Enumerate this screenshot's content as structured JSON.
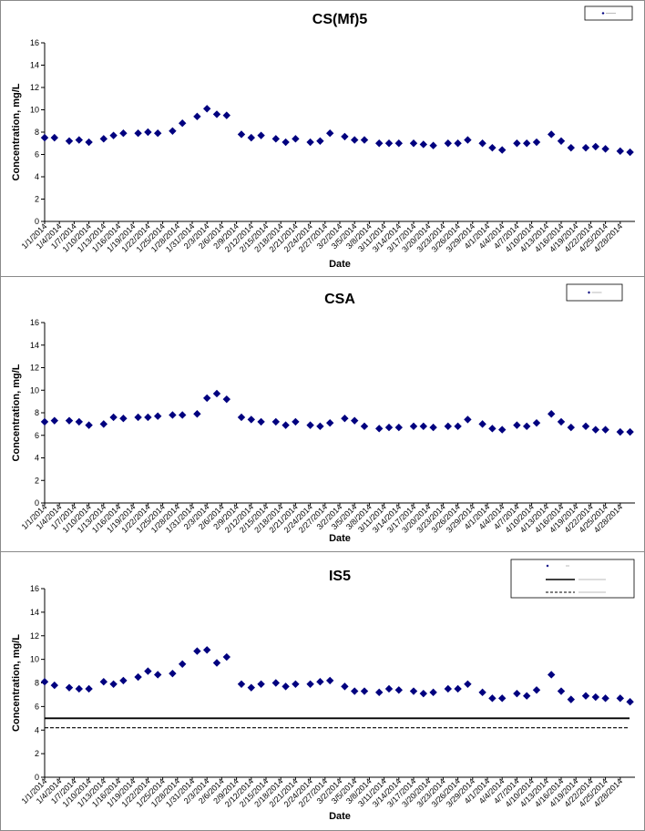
{
  "chart_data": [
    {
      "type": "scatter",
      "title": "CS(Mf)5",
      "xlabel": "Date",
      "ylabel": "Concentration, mg/L",
      "ylim": [
        0,
        16
      ],
      "yticks": [
        "0",
        "2",
        "4",
        "6",
        "8",
        "10",
        "12",
        "14",
        "16"
      ],
      "grid": false,
      "legend_position": "top-right",
      "x_tick_labels": [
        "1/1/2014",
        "1/4/2014",
        "1/7/2014",
        "1/10/2014",
        "1/13/2014",
        "1/16/2014",
        "1/19/2014",
        "1/22/2014",
        "1/25/2014",
        "1/28/2014",
        "1/31/2014",
        "2/3/2014",
        "2/6/2014",
        "2/9/2014",
        "2/12/2014",
        "2/15/2014",
        "2/18/2014",
        "2/21/2014",
        "2/24/2014",
        "2/27/2014",
        "3/2/2014",
        "3/5/2014",
        "3/8/2014",
        "3/11/2014",
        "3/14/2014",
        "3/17/2014",
        "3/20/2014",
        "3/23/2014",
        "3/26/2014",
        "3/29/2014",
        "4/1/2014",
        "4/4/2014",
        "4/7/2014",
        "4/10/2014",
        "4/13/2014",
        "4/16/2014",
        "4/19/2014",
        "4/22/2014",
        "4/25/2014",
        "4/28/2014"
      ],
      "x_range": [
        "1/1/2014",
        "5/1/2014"
      ],
      "series": [
        {
          "marker": "diamond",
          "color": "#00007f",
          "x": [
            "1/1/2014",
            "1/3/2014",
            "1/6/2014",
            "1/8/2014",
            "1/10/2014",
            "1/13/2014",
            "1/15/2014",
            "1/17/2014",
            "1/20/2014",
            "1/22/2014",
            "1/24/2014",
            "1/27/2014",
            "1/29/2014",
            "2/1/2014",
            "2/3/2014",
            "2/5/2014",
            "2/7/2014",
            "2/10/2014",
            "2/12/2014",
            "2/14/2014",
            "2/17/2014",
            "2/19/2014",
            "2/21/2014",
            "2/24/2014",
            "2/26/2014",
            "2/28/2014",
            "3/3/2014",
            "3/5/2014",
            "3/7/2014",
            "3/10/2014",
            "3/12/2014",
            "3/14/2014",
            "3/17/2014",
            "3/19/2014",
            "3/21/2014",
            "3/24/2014",
            "3/26/2014",
            "3/28/2014",
            "3/31/2014",
            "4/2/2014",
            "4/4/2014",
            "4/7/2014",
            "4/9/2014",
            "4/11/2014",
            "4/14/2014",
            "4/16/2014",
            "4/18/2014",
            "4/21/2014",
            "4/23/2014",
            "4/25/2014",
            "4/28/2014",
            "4/30/2014"
          ],
          "y": [
            7.5,
            7.5,
            7.2,
            7.3,
            7.1,
            7.4,
            7.7,
            7.9,
            7.9,
            8.0,
            7.9,
            8.1,
            8.8,
            9.4,
            10.1,
            9.6,
            9.5,
            7.8,
            7.5,
            7.7,
            7.4,
            7.1,
            7.4,
            7.1,
            7.2,
            7.9,
            7.6,
            7.3,
            7.3,
            7.0,
            7.0,
            7.0,
            7.0,
            6.9,
            6.8,
            7.0,
            7.0,
            7.3,
            7.0,
            6.6,
            6.4,
            7.0,
            7.0,
            7.1,
            7.8,
            7.2,
            6.6,
            6.6,
            6.7,
            6.5,
            6.3,
            6.2
          ]
        }
      ]
    },
    {
      "type": "scatter",
      "title": "CSA",
      "xlabel": "Date",
      "ylabel": "Concentration, mg/L",
      "ylim": [
        0,
        16
      ],
      "yticks": [
        "0",
        "2",
        "4",
        "6",
        "8",
        "10",
        "12",
        "14",
        "16"
      ],
      "grid": false,
      "legend_position": "top-right",
      "x_tick_labels": [
        "1/1/2014",
        "1/4/2014",
        "1/7/2014",
        "1/10/2014",
        "1/13/2014",
        "1/16/2014",
        "1/19/2014",
        "1/22/2014",
        "1/25/2014",
        "1/28/2014",
        "1/31/2014",
        "2/3/2014",
        "2/6/2014",
        "2/9/2014",
        "2/12/2014",
        "2/15/2014",
        "2/18/2014",
        "2/21/2014",
        "2/24/2014",
        "2/27/2014",
        "3/2/2014",
        "3/5/2014",
        "3/8/2014",
        "3/11/2014",
        "3/14/2014",
        "3/17/2014",
        "3/20/2014",
        "3/23/2014",
        "3/26/2014",
        "3/29/2014",
        "4/1/2014",
        "4/4/2014",
        "4/7/2014",
        "4/10/2014",
        "4/13/2014",
        "4/16/2014",
        "4/19/2014",
        "4/22/2014",
        "4/25/2014",
        "4/28/2014"
      ],
      "x_range": [
        "1/1/2014",
        "5/1/2014"
      ],
      "series": [
        {
          "marker": "diamond",
          "color": "#00007f",
          "x": [
            "1/1/2014",
            "1/3/2014",
            "1/6/2014",
            "1/8/2014",
            "1/10/2014",
            "1/13/2014",
            "1/15/2014",
            "1/17/2014",
            "1/20/2014",
            "1/22/2014",
            "1/24/2014",
            "1/27/2014",
            "1/29/2014",
            "2/1/2014",
            "2/3/2014",
            "2/5/2014",
            "2/7/2014",
            "2/10/2014",
            "2/12/2014",
            "2/14/2014",
            "2/17/2014",
            "2/19/2014",
            "2/21/2014",
            "2/24/2014",
            "2/26/2014",
            "2/28/2014",
            "3/3/2014",
            "3/5/2014",
            "3/7/2014",
            "3/10/2014",
            "3/12/2014",
            "3/14/2014",
            "3/17/2014",
            "3/19/2014",
            "3/21/2014",
            "3/24/2014",
            "3/26/2014",
            "3/28/2014",
            "3/31/2014",
            "4/2/2014",
            "4/4/2014",
            "4/7/2014",
            "4/9/2014",
            "4/11/2014",
            "4/14/2014",
            "4/16/2014",
            "4/18/2014",
            "4/21/2014",
            "4/23/2014",
            "4/25/2014",
            "4/28/2014",
            "4/30/2014"
          ],
          "y": [
            7.2,
            7.3,
            7.3,
            7.2,
            6.9,
            7.0,
            7.6,
            7.5,
            7.6,
            7.6,
            7.7,
            7.8,
            7.8,
            7.9,
            9.3,
            9.7,
            9.2,
            7.6,
            7.4,
            7.2,
            7.2,
            6.9,
            7.2,
            6.9,
            6.8,
            7.1,
            7.5,
            7.3,
            6.8,
            6.6,
            6.7,
            6.7,
            6.8,
            6.8,
            6.7,
            6.8,
            6.8,
            7.4,
            7.0,
            6.6,
            6.5,
            6.9,
            6.8,
            7.1,
            7.9,
            7.2,
            6.7,
            6.8,
            6.5,
            6.5,
            6.3,
            6.3
          ]
        }
      ]
    },
    {
      "type": "scatter",
      "title": "IS5",
      "xlabel": "Date",
      "ylabel": "Concentration, mg/L",
      "ylim": [
        0,
        16
      ],
      "yticks": [
        "0",
        "2",
        "4",
        "6",
        "8",
        "10",
        "12",
        "14",
        "16"
      ],
      "grid": false,
      "legend_position": "top-right",
      "x_tick_labels": [
        "1/1/2014",
        "1/4/2014",
        "1/7/2014",
        "1/10/2014",
        "1/13/2014",
        "1/16/2014",
        "1/19/2014",
        "1/22/2014",
        "1/25/2014",
        "1/28/2014",
        "1/31/2014",
        "2/3/2014",
        "2/6/2014",
        "2/9/2014",
        "2/12/2014",
        "2/15/2014",
        "2/18/2014",
        "2/21/2014",
        "2/24/2014",
        "2/27/2014",
        "3/2/2014",
        "3/5/2014",
        "3/8/2014",
        "3/11/2014",
        "3/14/2014",
        "3/17/2014",
        "3/20/2014",
        "3/23/2014",
        "3/26/2014",
        "3/29/2014",
        "4/1/2014",
        "4/4/2014",
        "4/7/2014",
        "4/10/2014",
        "4/13/2014",
        "4/16/2014",
        "4/19/2014",
        "4/22/2014",
        "4/25/2014",
        "4/28/2014"
      ],
      "x_range": [
        "1/1/2014",
        "5/1/2014"
      ],
      "series": [
        {
          "marker": "diamond",
          "color": "#00007f",
          "x": [
            "1/1/2014",
            "1/3/2014",
            "1/6/2014",
            "1/8/2014",
            "1/10/2014",
            "1/13/2014",
            "1/15/2014",
            "1/17/2014",
            "1/20/2014",
            "1/22/2014",
            "1/24/2014",
            "1/27/2014",
            "1/29/2014",
            "2/1/2014",
            "2/3/2014",
            "2/5/2014",
            "2/7/2014",
            "2/10/2014",
            "2/12/2014",
            "2/14/2014",
            "2/17/2014",
            "2/19/2014",
            "2/21/2014",
            "2/24/2014",
            "2/26/2014",
            "2/28/2014",
            "3/3/2014",
            "3/5/2014",
            "3/7/2014",
            "3/10/2014",
            "3/12/2014",
            "3/14/2014",
            "3/17/2014",
            "3/19/2014",
            "3/21/2014",
            "3/24/2014",
            "3/26/2014",
            "3/28/2014",
            "3/31/2014",
            "4/2/2014",
            "4/4/2014",
            "4/7/2014",
            "4/9/2014",
            "4/11/2014",
            "4/14/2014",
            "4/16/2014",
            "4/18/2014",
            "4/21/2014",
            "4/23/2014",
            "4/25/2014",
            "4/28/2014",
            "4/30/2014"
          ],
          "y": [
            8.1,
            7.8,
            7.6,
            7.5,
            7.5,
            8.1,
            7.9,
            8.2,
            8.5,
            9.0,
            8.7,
            8.8,
            9.6,
            10.7,
            10.8,
            9.7,
            10.2,
            7.9,
            7.6,
            7.9,
            8.0,
            7.7,
            7.9,
            7.9,
            8.1,
            8.2,
            7.7,
            7.3,
            7.3,
            7.2,
            7.5,
            7.4,
            7.3,
            7.1,
            7.2,
            7.5,
            7.5,
            7.9,
            7.2,
            6.7,
            6.7,
            7.1,
            6.9,
            7.4,
            8.7,
            7.3,
            6.6,
            6.9,
            6.8,
            6.7,
            6.7,
            6.4
          ]
        },
        {
          "line": "solid",
          "color": "#000000",
          "y": 5.0
        },
        {
          "line": "dashed",
          "color": "#000000",
          "y": 4.2
        }
      ]
    }
  ]
}
